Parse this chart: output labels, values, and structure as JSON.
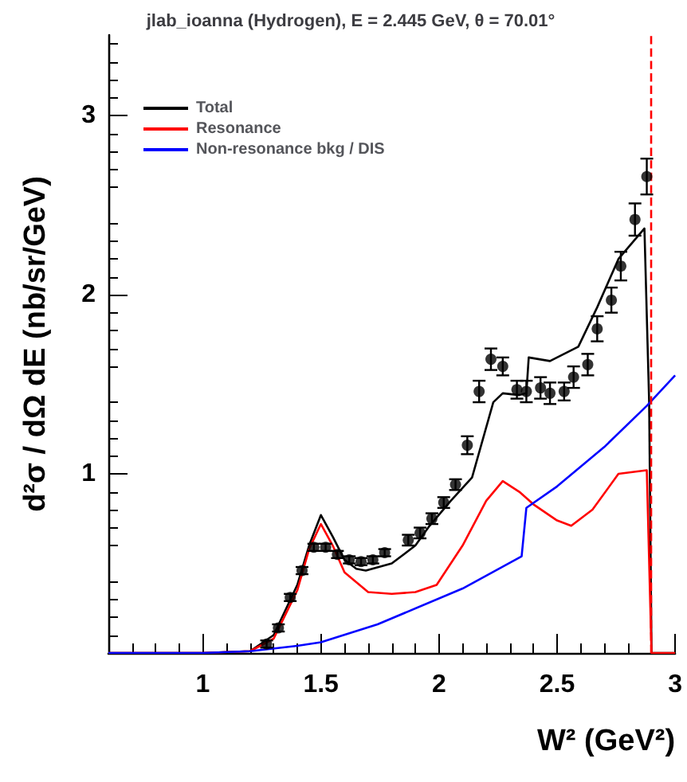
{
  "chart_data": {
    "type": "line",
    "title": "jlab_ioanna (Hydrogen), E = 2.445 GeV, θ = 70.01°",
    "xlabel": "W² (GeV²)",
    "ylabel": "d²σ / dΩ dE (nb/sr/GeV)",
    "xlim": [
      0.6,
      3.0
    ],
    "xticks": [
      1,
      1.5,
      2,
      2.5,
      3
    ],
    "ylim": [
      0,
      3.45
    ],
    "yticks": [
      {
        "value": 0,
        "label": null
      },
      1,
      2,
      3
    ],
    "legend": "top left",
    "grid": false,
    "ref_lines": [
      {
        "axis": "x",
        "value": 2.9,
        "color": "#ff0000",
        "line_style": "dashed"
      }
    ],
    "series": [
      {
        "type": "scatter",
        "color": "#000000",
        "marker": "circle",
        "x": [
          1.27,
          1.32,
          1.37,
          1.42,
          1.47,
          1.52,
          1.57,
          1.62,
          1.67,
          1.72,
          1.77,
          1.87,
          1.92,
          1.97,
          2.02,
          2.07,
          2.12,
          2.17,
          2.22,
          2.27,
          2.33,
          2.37,
          2.43,
          2.47,
          2.53,
          2.57,
          2.63,
          2.67,
          2.73,
          2.77,
          2.83,
          2.88
        ],
        "values": [
          0.05,
          0.14,
          0.31,
          0.46,
          0.59,
          0.59,
          0.55,
          0.52,
          0.51,
          0.52,
          0.56,
          0.63,
          0.67,
          0.75,
          0.84,
          0.94,
          1.16,
          1.46,
          1.64,
          1.6,
          1.47,
          1.46,
          1.48,
          1.45,
          1.46,
          1.54,
          1.61,
          1.81,
          1.97,
          2.16,
          2.42,
          2.66
        ],
        "errors": [
          0.02,
          0.02,
          0.02,
          0.02,
          0.02,
          0.02,
          0.02,
          0.02,
          0.02,
          0.02,
          0.02,
          0.03,
          0.03,
          0.03,
          0.03,
          0.03,
          0.05,
          0.06,
          0.06,
          0.05,
          0.05,
          0.06,
          0.06,
          0.06,
          0.05,
          0.06,
          0.06,
          0.07,
          0.07,
          0.08,
          0.09,
          0.1
        ]
      },
      {
        "name": "Total",
        "color": "#000000",
        "marker": "none",
        "x": [
          0.6,
          1.0,
          1.2,
          1.3,
          1.4,
          1.45,
          1.5,
          1.55,
          1.6,
          1.65,
          1.69,
          1.8,
          1.9,
          1.96,
          2.05,
          2.14,
          2.23,
          2.27,
          2.34,
          2.37,
          2.38,
          2.47,
          2.59,
          2.67,
          2.76,
          2.87,
          2.89,
          2.9,
          3.0
        ],
        "values": [
          0,
          0,
          0.01,
          0.1,
          0.38,
          0.6,
          0.77,
          0.65,
          0.52,
          0.47,
          0.46,
          0.5,
          0.6,
          0.71,
          0.85,
          0.98,
          1.4,
          1.45,
          1.44,
          1.45,
          1.65,
          1.63,
          1.71,
          1.93,
          2.2,
          2.37,
          1.4,
          0,
          0
        ]
      },
      {
        "name": "Resonance",
        "color": "#ff0000",
        "marker": "none",
        "x": [
          0.6,
          1.0,
          1.2,
          1.3,
          1.4,
          1.45,
          1.5,
          1.55,
          1.6,
          1.7,
          1.8,
          1.9,
          1.99,
          2.1,
          2.2,
          2.27,
          2.34,
          2.4,
          2.5,
          2.56,
          2.65,
          2.76,
          2.88,
          2.9,
          3.0
        ],
        "values": [
          0,
          0,
          0.01,
          0.08,
          0.35,
          0.58,
          0.72,
          0.6,
          0.45,
          0.34,
          0.33,
          0.34,
          0.38,
          0.6,
          0.85,
          0.96,
          0.9,
          0.83,
          0.74,
          0.71,
          0.8,
          1.0,
          1.02,
          0,
          0
        ]
      },
      {
        "name": "Non-resonance bkg / DIS",
        "color": "#0000ff",
        "marker": "none",
        "x": [
          0.6,
          1.0,
          1.2,
          1.4,
          1.5,
          1.74,
          2.1,
          2.35,
          2.37,
          2.5,
          2.7,
          2.88,
          3.0
        ],
        "values": [
          0,
          0,
          0.01,
          0.04,
          0.06,
          0.16,
          0.36,
          0.54,
          0.81,
          0.93,
          1.15,
          1.38,
          1.55
        ]
      }
    ]
  }
}
